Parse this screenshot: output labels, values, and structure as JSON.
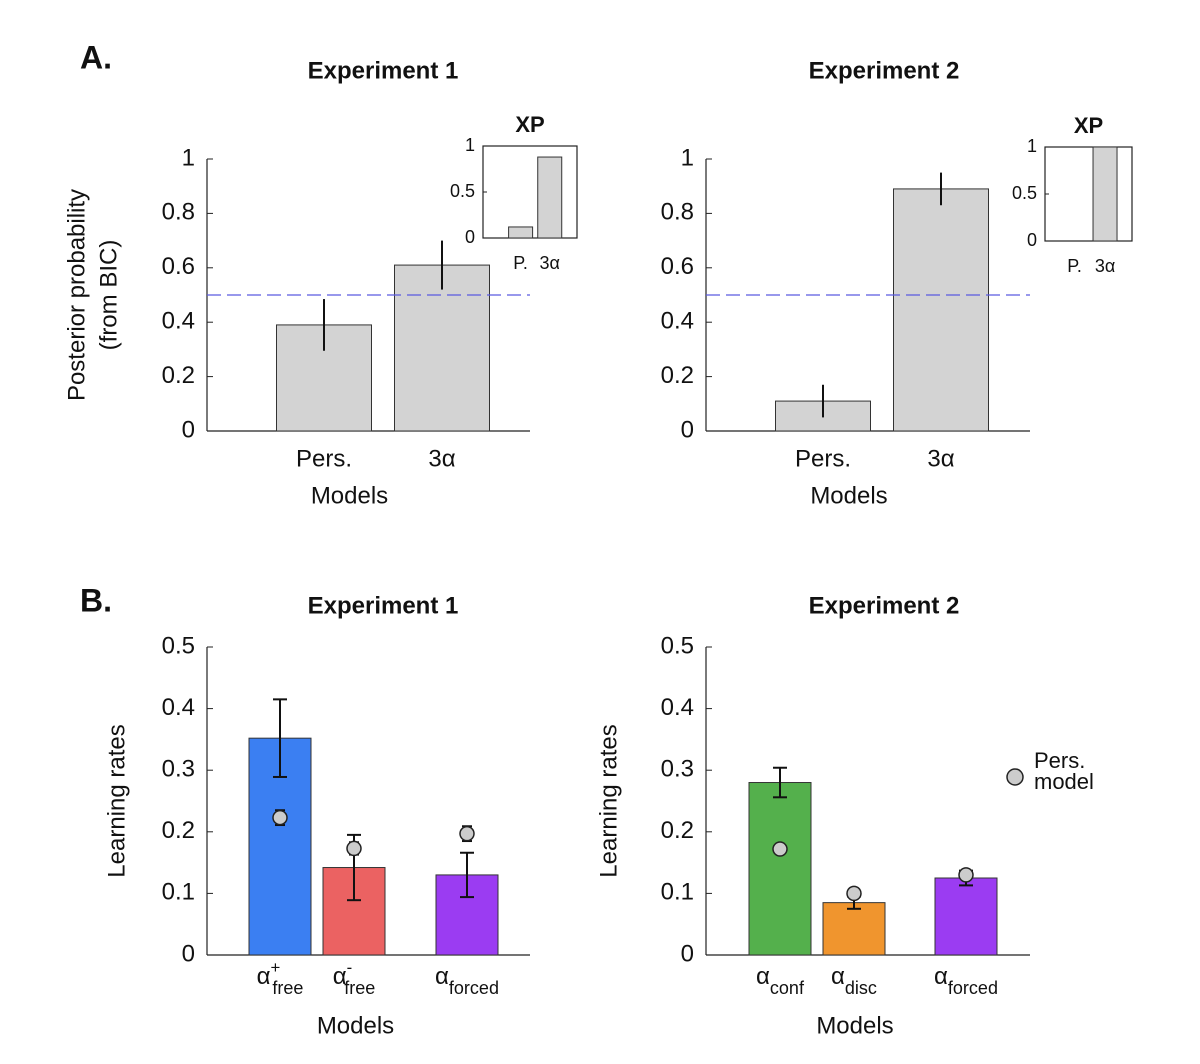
{
  "panel_labels": [
    "A.",
    "B."
  ],
  "chart_data": [
    {
      "type": "bar",
      "title": "Experiment 1",
      "ylabel": [
        "Posterior probability",
        "(from BIC)"
      ],
      "xlabel": "Models",
      "categories": [
        "Pers.",
        "3α"
      ],
      "values": [
        0.39,
        0.61
      ],
      "errors": [
        0.095,
        0.09
      ],
      "color": "#d3d3d3",
      "ylim": [
        0,
        1
      ],
      "yticks": [
        0,
        0.2,
        0.4,
        0.6,
        0.8,
        1
      ],
      "hline": {
        "value": 0.5,
        "color": "#5a5ae0",
        "style": "dashed"
      },
      "inset": {
        "title": "XP",
        "categories": [
          "P.",
          "3α"
        ],
        "values": [
          0.12,
          0.88
        ],
        "ylim": [
          0,
          1
        ],
        "yticks": [
          0,
          0.5,
          1
        ]
      }
    },
    {
      "type": "bar",
      "title": "Experiment 2",
      "xlabel": "Models",
      "categories": [
        "Pers.",
        "3α"
      ],
      "values": [
        0.11,
        0.89
      ],
      "errors": [
        0.06,
        0.06
      ],
      "color": "#d3d3d3",
      "ylim": [
        0,
        1
      ],
      "yticks": [
        0,
        0.2,
        0.4,
        0.6,
        0.8,
        1
      ],
      "hline": {
        "value": 0.5,
        "color": "#5a5ae0",
        "style": "dashed"
      },
      "inset": {
        "title": "XP",
        "categories": [
          "P.",
          "3α"
        ],
        "values": [
          0,
          1
        ],
        "ylim": [
          0,
          1
        ],
        "yticks": [
          0,
          0.5,
          1
        ]
      }
    },
    {
      "type": "bar",
      "title": "Experiment 1",
      "ylabel": "Learning rates",
      "xlabel": "Models",
      "categories": [
        {
          "symbol": "α",
          "sup": "+",
          "sub": "free"
        },
        {
          "symbol": "α",
          "sup": "-",
          "sub": "free"
        },
        {
          "symbol": "α",
          "sub": "forced"
        }
      ],
      "values": [
        0.352,
        0.142,
        0.13
      ],
      "errors": [
        0.063,
        0.053,
        0.036
      ],
      "colors": [
        "#3b7ff2",
        "#eb6262",
        "#9b3cf2"
      ],
      "ylim": [
        0,
        0.5
      ],
      "yticks": [
        0,
        0.1,
        0.2,
        0.3,
        0.4,
        0.5
      ],
      "points": {
        "values": [
          0.223,
          0.173,
          0.197
        ],
        "errors": [
          0.012,
          0.01,
          0.012
        ],
        "color": "#cccccc"
      }
    },
    {
      "type": "bar",
      "title": "Experiment 2",
      "ylabel": "Learning rates",
      "xlabel": "Models",
      "categories": [
        {
          "symbol": "α",
          "sub": "conf"
        },
        {
          "symbol": "α",
          "sub": "disc"
        },
        {
          "symbol": "α",
          "sub": "forced"
        }
      ],
      "values": [
        0.28,
        0.085,
        0.125
      ],
      "errors": [
        0.024,
        0.01,
        0.012
      ],
      "colors": [
        "#54b04c",
        "#f0952e",
        "#9b3cf2"
      ],
      "ylim": [
        0,
        0.5
      ],
      "yticks": [
        0,
        0.1,
        0.2,
        0.3,
        0.4,
        0.5
      ],
      "points": {
        "name": "Pers. model",
        "values": [
          0.172,
          0.1,
          0.13
        ],
        "errors": [
          0.008,
          0.008,
          0.008
        ],
        "color": "#cccccc"
      }
    }
  ]
}
